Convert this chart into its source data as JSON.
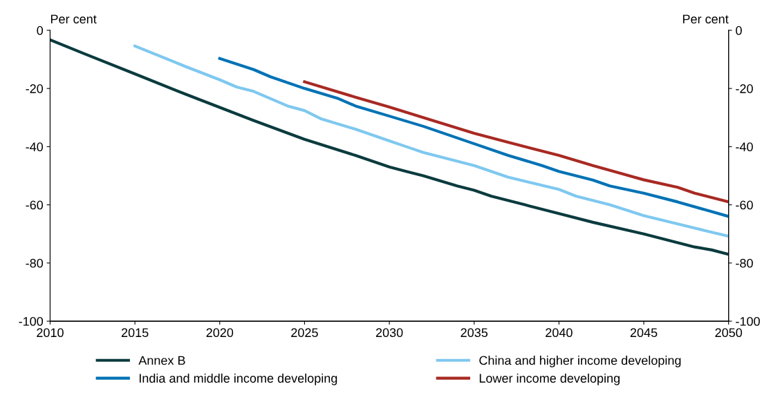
{
  "chart_data": {
    "type": "line",
    "ylabel": "Per cent",
    "y2label": "Per cent",
    "xlim": [
      2010,
      2050
    ],
    "xticks": [
      2010,
      2015,
      2020,
      2025,
      2030,
      2035,
      2040,
      2045,
      2050
    ],
    "ylim": [
      -100,
      0
    ],
    "yticks": [
      -100,
      -80,
      -60,
      -40,
      -20,
      0
    ],
    "y2lim": [
      -100,
      0
    ],
    "y2ticks": [
      -100,
      -80,
      -60,
      -40,
      -20,
      0
    ],
    "grid": false,
    "legend": "bottom",
    "marker": "none",
    "line_style": "solid",
    "series": [
      {
        "name": "Annex B",
        "color": "#0b3b3e",
        "x": [
          2010,
          2012,
          2015,
          2018,
          2020,
          2022,
          2025,
          2028,
          2030,
          2031,
          2032,
          2034,
          2035,
          2036,
          2038,
          2040,
          2042,
          2045,
          2048,
          2049,
          2050
        ],
        "values": [
          -3.3,
          -8,
          -15,
          -22,
          -26.5,
          -31,
          -37.5,
          -43,
          -47,
          -48.5,
          -50,
          -53.5,
          -55,
          -57,
          -60,
          -63,
          -66,
          -70,
          -74.5,
          -75.5,
          -77
        ]
      },
      {
        "name": "China and higher income developing",
        "color": "#7fc8ef",
        "x": [
          2015,
          2018,
          2020,
          2021,
          2022,
          2024,
          2025,
          2026,
          2028,
          2030,
          2031,
          2032,
          2035,
          2037,
          2040,
          2041,
          2043,
          2045,
          2048,
          2050
        ],
        "values": [
          -5.4,
          -12.5,
          -17,
          -19.5,
          -21,
          -26,
          -27.6,
          -30.5,
          -34,
          -38,
          -40,
          -42,
          -46.5,
          -50.5,
          -54.7,
          -57,
          -60,
          -63.7,
          -68,
          -70.8
        ]
      },
      {
        "name": "India and middle income developing",
        "color": "#0072b5",
        "x": [
          2020,
          2022,
          2023,
          2025,
          2027,
          2028,
          2030,
          2032,
          2035,
          2037,
          2039,
          2040,
          2041,
          2042,
          2043,
          2045,
          2047,
          2050
        ],
        "values": [
          -9.7,
          -13.5,
          -16,
          -20,
          -23.5,
          -26,
          -29.5,
          -33,
          -39,
          -43,
          -46.5,
          -48.5,
          -50,
          -51.5,
          -53.5,
          -56,
          -59,
          -64
        ]
      },
      {
        "name": "Lower income developing",
        "color": "#a82a23",
        "x": [
          2025,
          2028,
          2030,
          2032,
          2035,
          2037,
          2040,
          2042,
          2045,
          2047,
          2048,
          2050
        ],
        "values": [
          -17.7,
          -23,
          -26.4,
          -30,
          -35.4,
          -38.5,
          -43,
          -46.5,
          -51.4,
          -54,
          -56,
          -59
        ]
      }
    ]
  }
}
